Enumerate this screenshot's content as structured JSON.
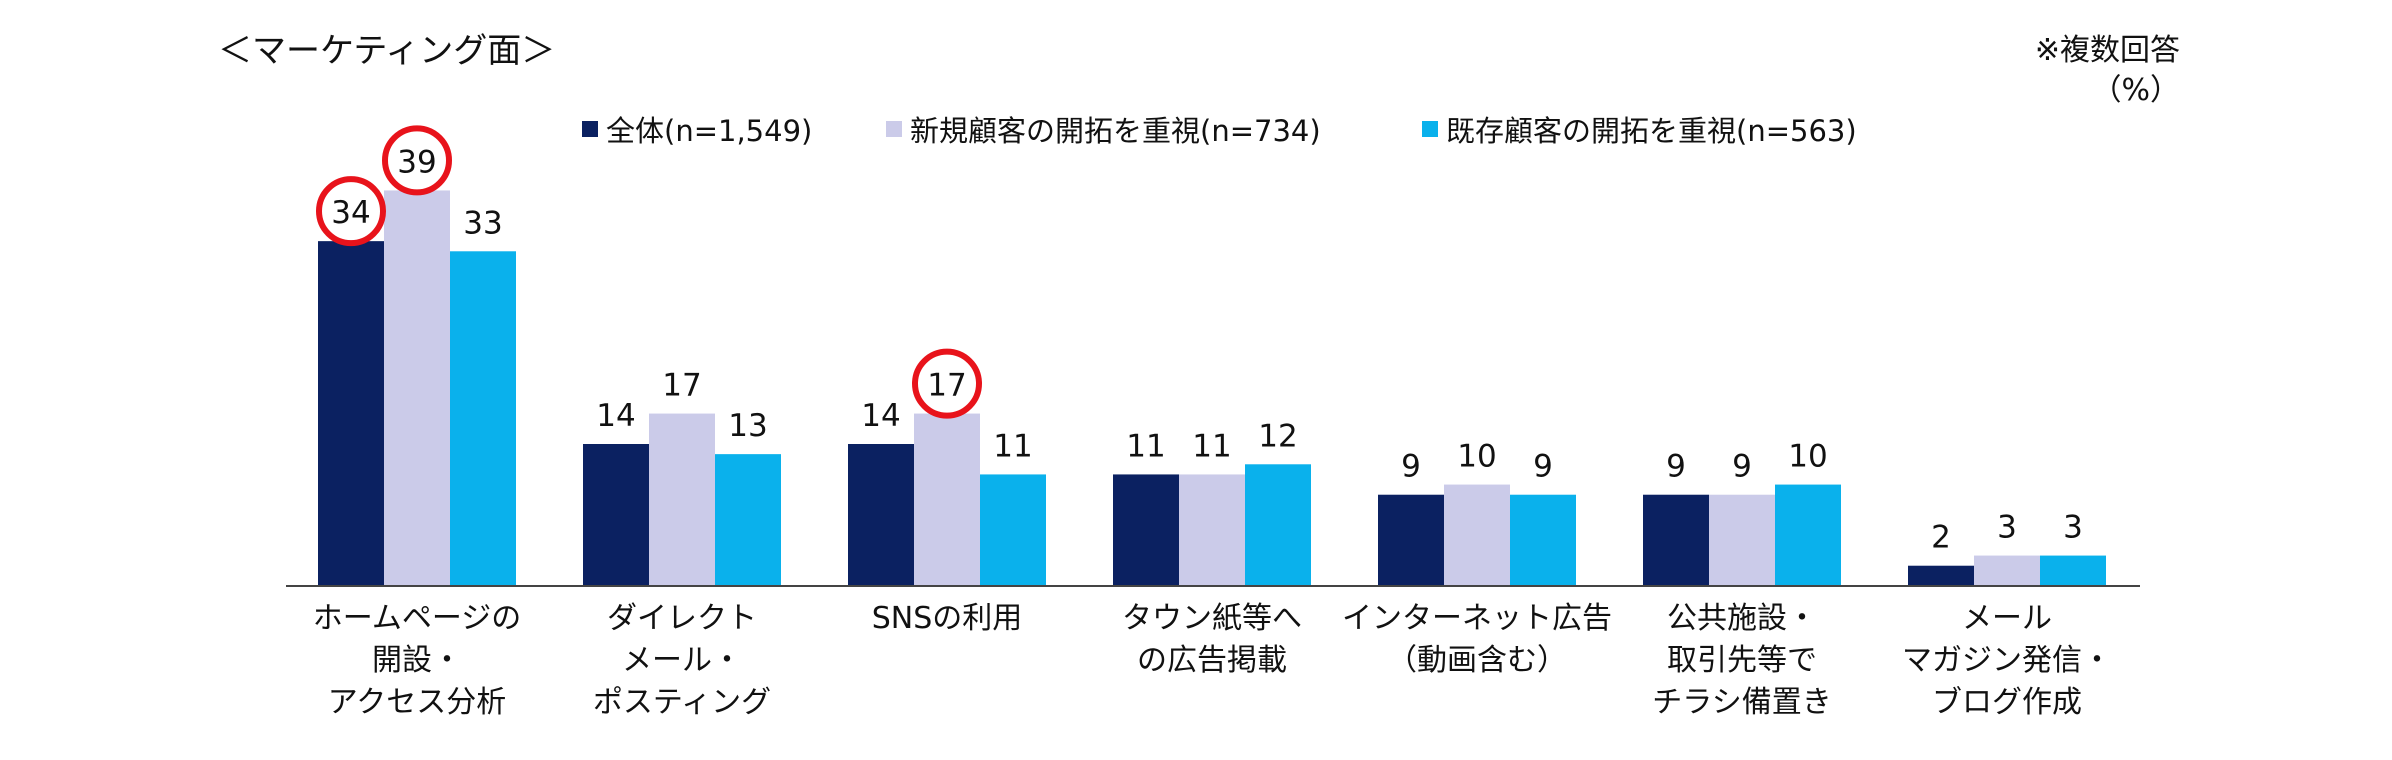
{
  "chart_data": {
    "type": "bar",
    "title": "＜マーケティング面＞",
    "note": "※複数回答",
    "unit": "（%）",
    "categories": [
      [
        "ホームページの",
        "開設・",
        "アクセス分析"
      ],
      [
        "ダイレクト",
        "メール・",
        "ポスティング"
      ],
      [
        "SNSの利用"
      ],
      [
        "タウン紙等へ",
        "の広告掲載"
      ],
      [
        "インターネット広告",
        "（動画含む）"
      ],
      [
        "公共施設・",
        "取引先等で",
        "チラシ備置き"
      ],
      [
        "メール",
        "マガジン発信・",
        "ブログ作成"
      ]
    ],
    "series": [
      {
        "name": "全体(n=1,549)",
        "color": "#0b2161",
        "values": [
          34,
          14,
          14,
          11,
          9,
          9,
          2
        ]
      },
      {
        "name": "新規顧客の開拓を重視(n=734)",
        "color": "#cbcbe9",
        "values": [
          39,
          17,
          17,
          11,
          10,
          9,
          3
        ]
      },
      {
        "name": "既存顧客の開拓を重視(n=563)",
        "color": "#0ab1ec",
        "values": [
          33,
          13,
          11,
          12,
          9,
          10,
          3
        ]
      }
    ],
    "highlighted": [
      {
        "series": 0,
        "category": 0
      },
      {
        "series": 1,
        "category": 0
      },
      {
        "series": 1,
        "category": 2
      }
    ],
    "highlight_color": "#e8131b",
    "ylim": [
      0,
      42
    ],
    "grid": false,
    "legend_position": "top-center"
  }
}
